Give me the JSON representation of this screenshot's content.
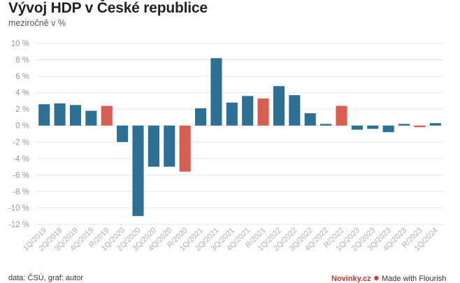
{
  "chart_data": {
    "type": "bar",
    "title": "Vývoj HDP v České republice",
    "subtitle": "meziročně v %",
    "xlabel": "",
    "ylabel": "",
    "ylim": [
      -12,
      10
    ],
    "yticks": [
      10,
      8,
      6,
      4,
      2,
      0,
      -2,
      -4,
      -6,
      -8,
      -10,
      -12
    ],
    "ytick_labels": [
      "10 %",
      "8 %",
      "6 %",
      "4 %",
      "2 %",
      "0 %",
      "-2 %",
      "-4 %",
      "-6 %",
      "-8 %",
      "-10 %",
      "-12 %"
    ],
    "grid": true,
    "categories": [
      "1Q/2019",
      "2Q/2019",
      "3Q/2019",
      "4Q/2019",
      "R/2019",
      "1Q/2020",
      "2Q/2020",
      "3Q/2020",
      "4Q/2020",
      "R/2020",
      "1Q/2021",
      "2Q/2021",
      "3Q/2021",
      "4Q/2021",
      "R/2021",
      "1Q/2022",
      "2Q/2022",
      "3Q/2022",
      "4Q/2022",
      "R/2022",
      "1Q/2023",
      "2Q/2023",
      "3Q/2023",
      "4Q/2023",
      "R/2023",
      "1Q/2024"
    ],
    "values": [
      2.6,
      2.7,
      2.5,
      1.8,
      2.4,
      -2.0,
      -11.0,
      -5.0,
      -5.0,
      -5.6,
      2.1,
      8.2,
      2.8,
      3.6,
      3.3,
      4.8,
      3.7,
      1.5,
      0.2,
      2.4,
      -0.5,
      -0.4,
      -0.8,
      0.2,
      -0.2,
      0.3
    ],
    "colors": {
      "quarter": "#2e6f96",
      "annual": "#d65f4f",
      "grid": "#e6e6e6",
      "tick_text": "#9a9a9a",
      "category_text": "#b0b0b0"
    }
  },
  "footer": {
    "source": "data: ČSÚ, graf: autor",
    "brand": "Novinky.cz",
    "made_with": "Made with Flourish"
  }
}
